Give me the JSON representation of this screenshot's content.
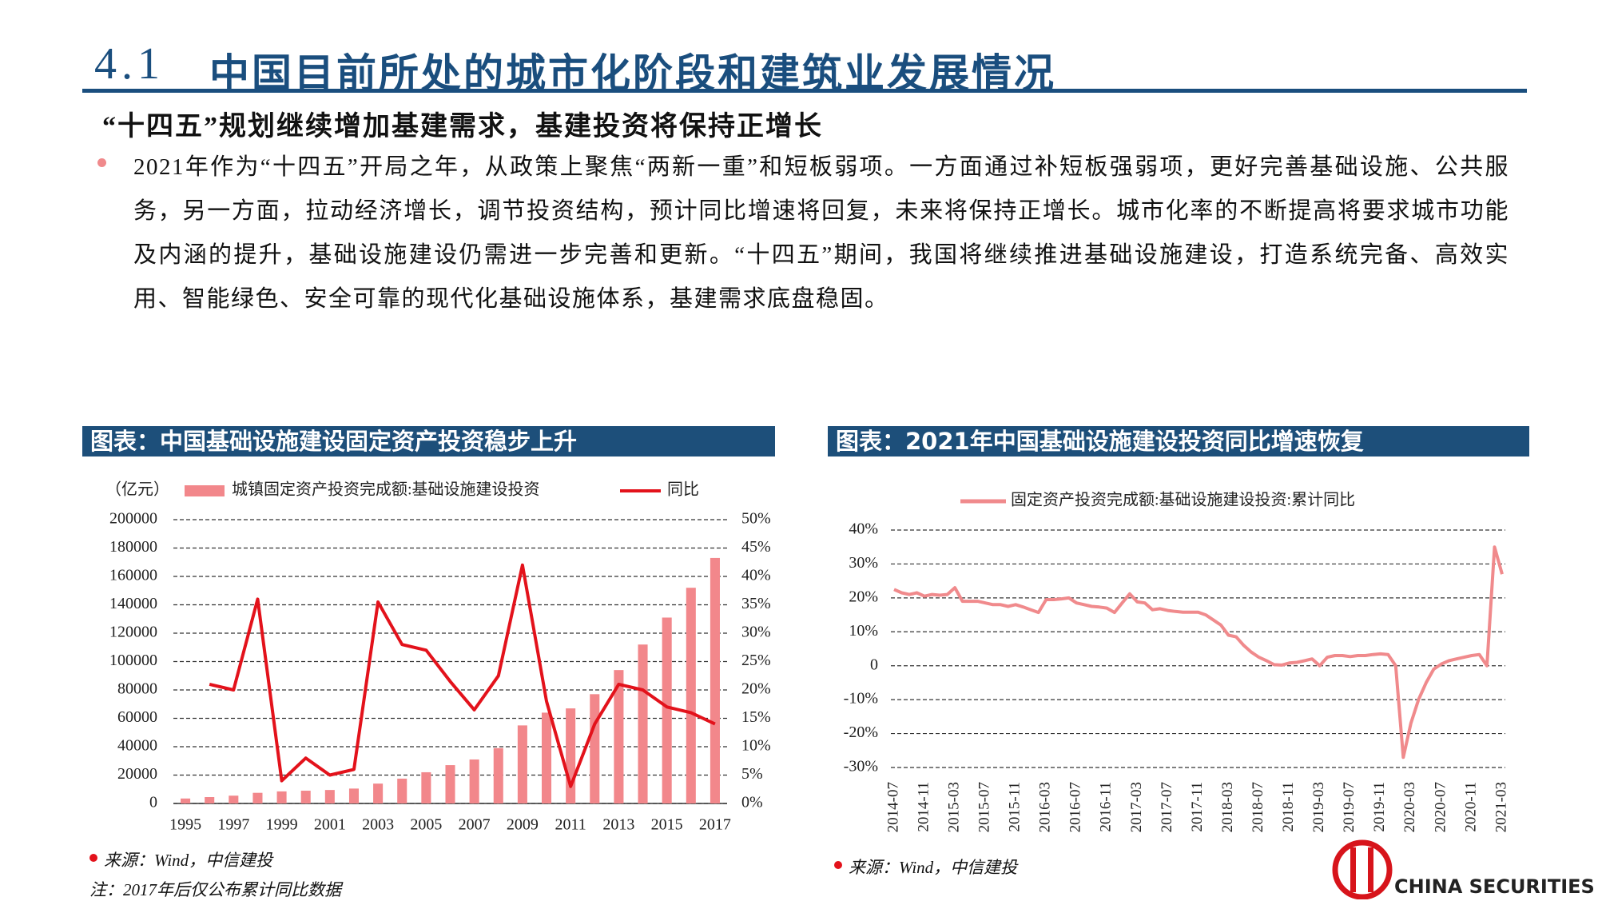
{
  "header": {
    "section": "4.1",
    "title": "中国目前所处的城市化阶段和建筑业发展情况"
  },
  "subtitle": "“十四五”规划继续增加基建需求，基建投资将保持正增长",
  "bullet": "2021年作为“十四五”开局之年，从政策上聚焦“两新一重”和短板弱项。一方面通过补短板强弱项，更好完善基础设施、公共服务，另一方面，拉动经济增长，调节投资结构，预计同比增速将回复，未来将保持正增长。城市化率的不断提高将要求城市功能及内涵的提升，基础设施建设仍需进一步完善和更新。“十四五”期间，我国将继续推进基础设施建设，打造系统完备、高效实用、智能绿色、安全可靠的现代化基础设施体系，基建需求底盘稳固。",
  "panels": [
    {
      "heading": "图表：中国基础设施建设固定资产投资稳步上升",
      "source": "来源：Wind，中信建投",
      "note": "注：2017年后仅公布累计同比数据"
    },
    {
      "heading": "图表：2021年中国基础设施建设投资同比增速恢复",
      "source": "来源：Wind，中信建投"
    }
  ],
  "logo": "CHINA SECURITIES",
  "chart_data": [
    {
      "type": "combo",
      "y_label": "（亿元）",
      "categories": [
        "1995",
        null,
        "1997",
        null,
        "1999",
        null,
        "2001",
        null,
        "2003",
        null,
        "2005",
        null,
        "2007",
        null,
        "2009",
        null,
        "2011",
        null,
        "2013",
        null,
        "2015",
        null,
        "2017"
      ],
      "series": [
        {
          "name": "城镇固定资产投资完成额:基础设施建设投资",
          "type": "bar",
          "color": "#f2878b",
          "values": [
            3500,
            4500,
            5500,
            7500,
            8500,
            9000,
            9500,
            10500,
            14000,
            17500,
            22000,
            27000,
            31000,
            39000,
            55000,
            64000,
            67000,
            77000,
            94000,
            112000,
            131000,
            152000,
            173000
          ]
        },
        {
          "name": "同比",
          "type": "line",
          "axis": "y2",
          "color": "#e3121b",
          "values": [
            null,
            21,
            20,
            36,
            4,
            8,
            5,
            6,
            35.5,
            28,
            27,
            21.5,
            16.5,
            22.5,
            42,
            18,
            3,
            14,
            21,
            20,
            17,
            16,
            14
          ]
        }
      ],
      "ylim": [
        0,
        200000
      ],
      "yticks": [
        0,
        20000,
        40000,
        60000,
        80000,
        100000,
        120000,
        140000,
        160000,
        180000,
        200000
      ],
      "y2lim": [
        0,
        50
      ],
      "y2ticks": [
        {
          "value": 0,
          "label": "0%"
        },
        {
          "value": 5,
          "label": "5%"
        },
        {
          "value": 10,
          "label": "10%"
        },
        {
          "value": 15,
          "label": "15%"
        },
        {
          "value": 20,
          "label": "20%"
        },
        {
          "value": 25,
          "label": "25%"
        },
        {
          "value": 30,
          "label": "30%"
        },
        {
          "value": 35,
          "label": "35%"
        },
        {
          "value": 40,
          "label": "40%"
        },
        {
          "value": 45,
          "label": "45%"
        },
        {
          "value": 50,
          "label": "50%"
        }
      ],
      "grid": true
    },
    {
      "type": "line",
      "categories": [
        "2014-07",
        null,
        null,
        null,
        "2014-11",
        null,
        null,
        null,
        "2015-03",
        null,
        null,
        null,
        "2015-07",
        null,
        null,
        null,
        "2015-11",
        null,
        null,
        null,
        "2016-03",
        null,
        null,
        null,
        "2016-07",
        null,
        null,
        null,
        "2016-11",
        null,
        null,
        null,
        "2017-03",
        null,
        null,
        null,
        "2017-07",
        null,
        null,
        null,
        "2017-11",
        null,
        null,
        null,
        "2018-03",
        null,
        null,
        null,
        "2018-07",
        null,
        null,
        null,
        "2018-11",
        null,
        null,
        null,
        "2019-03",
        null,
        null,
        null,
        "2019-07",
        null,
        null,
        null,
        "2019-11",
        null,
        null,
        null,
        "2020-03",
        null,
        null,
        null,
        "2020-07",
        null,
        null,
        null,
        "2020-11",
        null,
        null,
        null,
        "2021-03"
      ],
      "series": [
        {
          "name": "固定资产投资完成额:基础设施建设投资:累计同比",
          "color": "#f08a8c",
          "values": [
            22.5,
            21.5,
            21,
            21.5,
            20.5,
            21,
            20.8,
            21,
            23,
            19,
            19,
            19,
            18.5,
            18,
            18,
            17.5,
            18,
            17.3,
            16.5,
            15.7,
            19.5,
            19.5,
            19.7,
            20,
            18.5,
            18,
            17.5,
            17.3,
            17,
            15.7,
            18.5,
            21.2,
            18.8,
            18.5,
            16.5,
            16.8,
            16.3,
            16,
            15.8,
            15.8,
            15.8,
            15,
            13.5,
            12,
            9,
            8.5,
            6,
            4,
            2.5,
            1.5,
            0.3,
            0.2,
            0.8,
            1,
            1.5,
            2,
            0,
            2.5,
            3,
            3,
            2.7,
            3,
            3,
            3.3,
            3.5,
            3.3,
            0,
            -27,
            -17,
            -10,
            -5,
            -1,
            0.5,
            1.5,
            2,
            2.5,
            3,
            3.3,
            0,
            35,
            27
          ]
        }
      ],
      "ylim": [
        -30,
        40
      ],
      "yticks": [
        {
          "value": 40,
          "label": "40%"
        },
        {
          "value": 30,
          "label": "30%"
        },
        {
          "value": 20,
          "label": "20%"
        },
        {
          "value": 10,
          "label": "10%"
        },
        {
          "value": 0,
          "label": "0"
        },
        {
          "value": -10,
          "label": "-10%"
        },
        {
          "value": -20,
          "label": "-20%"
        },
        {
          "value": -30,
          "label": "-30%"
        }
      ],
      "grid": true
    }
  ]
}
